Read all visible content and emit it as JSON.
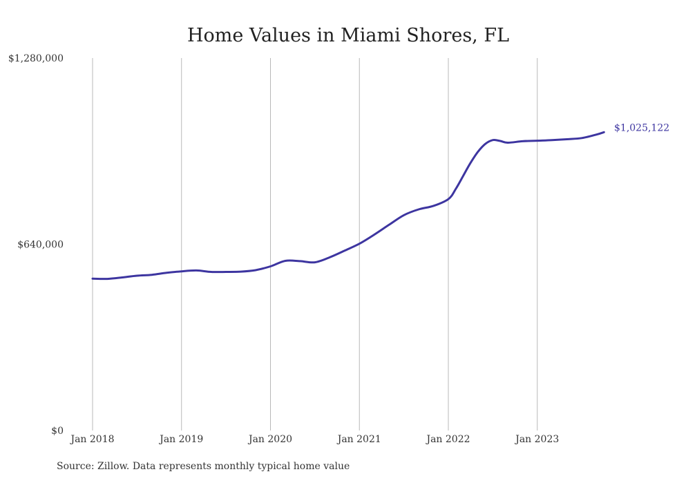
{
  "chart_data": {
    "type": "line",
    "title": "Home Values in Miami Shores, FL",
    "xlabel": "",
    "ylabel": "",
    "ylim": [
      0,
      1280000
    ],
    "yticks": [
      {
        "value": 0,
        "label": "$0"
      },
      {
        "value": 640000,
        "label": "$640,000"
      },
      {
        "value": 1280000,
        "label": "$1,280,000"
      }
    ],
    "xlim": [
      "2018-01",
      "2023-10"
    ],
    "xticks": [
      {
        "date": "2018-01",
        "label": "Jan 2018"
      },
      {
        "date": "2019-01",
        "label": "Jan 2019"
      },
      {
        "date": "2020-01",
        "label": "Jan 2020"
      },
      {
        "date": "2021-01",
        "label": "Jan 2021"
      },
      {
        "date": "2022-01",
        "label": "Jan 2022"
      },
      {
        "date": "2023-01",
        "label": "Jan 2023"
      }
    ],
    "grid": "vertical",
    "legend": "none",
    "line_color": "#3d35a0",
    "end_label": "$1,025,122",
    "series": [
      {
        "x": [
          "2018-01",
          "2018-03",
          "2018-05",
          "2018-07",
          "2018-09",
          "2018-11",
          "2019-01",
          "2019-03",
          "2019-05",
          "2019-07",
          "2019-09",
          "2019-11",
          "2020-01",
          "2020-03",
          "2020-05",
          "2020-07",
          "2020-09",
          "2020-11",
          "2021-01",
          "2021-03",
          "2021-05",
          "2021-07",
          "2021-09",
          "2021-11",
          "2022-01",
          "2022-02",
          "2022-03",
          "2022-04",
          "2022-05",
          "2022-06",
          "2022-07",
          "2022-08",
          "2022-09",
          "2022-11",
          "2023-01",
          "2023-03",
          "2023-05",
          "2023-07",
          "2023-09",
          "2023-10"
        ],
        "y": [
          522000,
          521000,
          526000,
          532000,
          535000,
          542000,
          547000,
          550000,
          545000,
          545000,
          546000,
          551000,
          564000,
          583000,
          582000,
          578000,
          595000,
          618000,
          642000,
          673000,
          707000,
          740000,
          760000,
          772000,
          795000,
          830000,
          875000,
          920000,
          958000,
          985000,
          998000,
          995000,
          989000,
          994000,
          996000,
          998000,
          1001000,
          1005000,
          1017000,
          1025122
        ]
      }
    ]
  },
  "source": "Source: Zillow. Data represents monthly typical home value"
}
